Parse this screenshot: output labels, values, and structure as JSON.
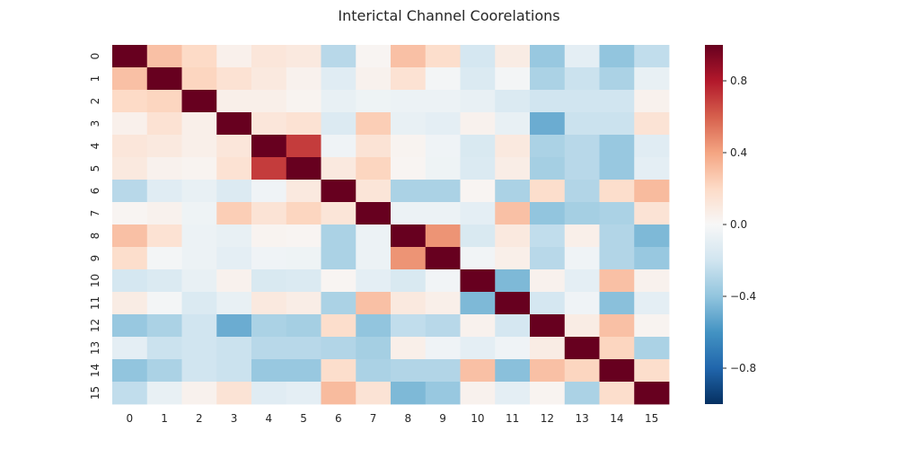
{
  "chart_data": {
    "type": "heatmap",
    "title": "Interictal Channel Coorelations",
    "xlabel": "",
    "ylabel": "",
    "x_labels": [
      "0",
      "1",
      "2",
      "3",
      "4",
      "5",
      "6",
      "7",
      "8",
      "9",
      "10",
      "11",
      "12",
      "13",
      "14",
      "15"
    ],
    "y_labels": [
      "0",
      "1",
      "2",
      "3",
      "4",
      "5",
      "6",
      "7",
      "8",
      "9",
      "10",
      "11",
      "12",
      "13",
      "14",
      "15"
    ],
    "values": [
      [
        1.0,
        0.3,
        0.2,
        0.05,
        0.12,
        0.1,
        -0.28,
        0.02,
        0.3,
        0.18,
        -0.18,
        0.08,
        -0.38,
        -0.1,
        -0.4,
        -0.25
      ],
      [
        0.3,
        1.0,
        0.22,
        0.15,
        0.1,
        0.04,
        -0.12,
        0.04,
        0.15,
        -0.02,
        -0.15,
        -0.02,
        -0.32,
        -0.22,
        -0.32,
        -0.08
      ],
      [
        0.2,
        0.22,
        1.0,
        0.06,
        0.06,
        0.03,
        -0.08,
        -0.05,
        -0.06,
        -0.06,
        -0.08,
        -0.15,
        -0.2,
        -0.2,
        -0.2,
        0.04
      ],
      [
        0.05,
        0.15,
        0.06,
        1.0,
        0.12,
        0.15,
        -0.14,
        0.25,
        -0.08,
        -0.1,
        0.04,
        -0.08,
        -0.5,
        -0.22,
        -0.22,
        0.14
      ],
      [
        0.12,
        0.1,
        0.06,
        0.12,
        1.0,
        0.7,
        -0.04,
        0.14,
        0.03,
        -0.04,
        -0.16,
        0.1,
        -0.32,
        -0.28,
        -0.38,
        -0.12
      ],
      [
        0.1,
        0.04,
        0.03,
        0.15,
        0.7,
        1.0,
        0.1,
        0.22,
        0.02,
        -0.05,
        -0.15,
        0.07,
        -0.34,
        -0.28,
        -0.38,
        -0.1
      ],
      [
        -0.28,
        -0.12,
        -0.08,
        -0.14,
        -0.04,
        0.1,
        1.0,
        0.13,
        -0.32,
        -0.32,
        0.02,
        -0.32,
        0.18,
        -0.3,
        0.18,
        0.32
      ],
      [
        0.02,
        0.04,
        -0.05,
        0.25,
        0.14,
        0.22,
        0.13,
        1.0,
        -0.06,
        -0.06,
        -0.1,
        0.3,
        -0.4,
        -0.34,
        -0.32,
        0.14
      ],
      [
        0.3,
        0.15,
        -0.06,
        -0.08,
        0.03,
        0.02,
        -0.32,
        -0.06,
        1.0,
        0.45,
        -0.16,
        0.1,
        -0.25,
        0.06,
        -0.3,
        -0.45
      ],
      [
        0.18,
        -0.02,
        -0.06,
        -0.1,
        -0.04,
        -0.05,
        -0.32,
        -0.06,
        0.45,
        1.0,
        -0.03,
        0.06,
        -0.28,
        -0.04,
        -0.3,
        -0.38
      ],
      [
        -0.18,
        -0.15,
        -0.08,
        0.04,
        -0.16,
        -0.15,
        0.02,
        -0.1,
        -0.16,
        -0.03,
        1.0,
        -0.45,
        0.04,
        -0.1,
        0.3,
        0.04
      ],
      [
        0.08,
        -0.02,
        -0.15,
        -0.08,
        0.1,
        0.07,
        -0.32,
        0.3,
        0.1,
        0.06,
        -0.45,
        1.0,
        -0.18,
        -0.04,
        -0.42,
        -0.1
      ],
      [
        -0.38,
        -0.32,
        -0.2,
        -0.5,
        -0.32,
        -0.34,
        0.18,
        -0.4,
        -0.25,
        -0.28,
        0.04,
        -0.18,
        1.0,
        0.08,
        0.3,
        0.03
      ],
      [
        -0.1,
        -0.22,
        -0.2,
        -0.22,
        -0.28,
        -0.28,
        -0.3,
        -0.34,
        0.06,
        -0.04,
        -0.1,
        -0.04,
        0.08,
        1.0,
        0.22,
        -0.32
      ],
      [
        -0.4,
        -0.32,
        -0.2,
        -0.22,
        -0.38,
        -0.38,
        0.18,
        -0.32,
        -0.3,
        -0.3,
        0.3,
        -0.42,
        0.3,
        0.22,
        1.0,
        0.18
      ],
      [
        -0.25,
        -0.08,
        0.04,
        0.14,
        -0.12,
        -0.1,
        0.32,
        0.14,
        -0.45,
        -0.38,
        0.04,
        -0.1,
        0.03,
        -0.32,
        0.18,
        1.0
      ]
    ],
    "colorbar": {
      "range": [
        -1.0,
        1.0
      ],
      "ticks": [
        -0.8,
        -0.4,
        0.0,
        0.4,
        0.8
      ],
      "tick_labels": [
        "−0.8",
        "−0.4",
        "0.0",
        "0.4",
        "0.8"
      ]
    },
    "colormap": {
      "name": "RdBu_r",
      "stops": [
        "#053061",
        "#2166ac",
        "#4393c3",
        "#92c5de",
        "#d1e5f0",
        "#f7f7f7",
        "#fddbc7",
        "#f4a582",
        "#d6604d",
        "#b2182b",
        "#67001f"
      ]
    },
    "grid": false
  }
}
